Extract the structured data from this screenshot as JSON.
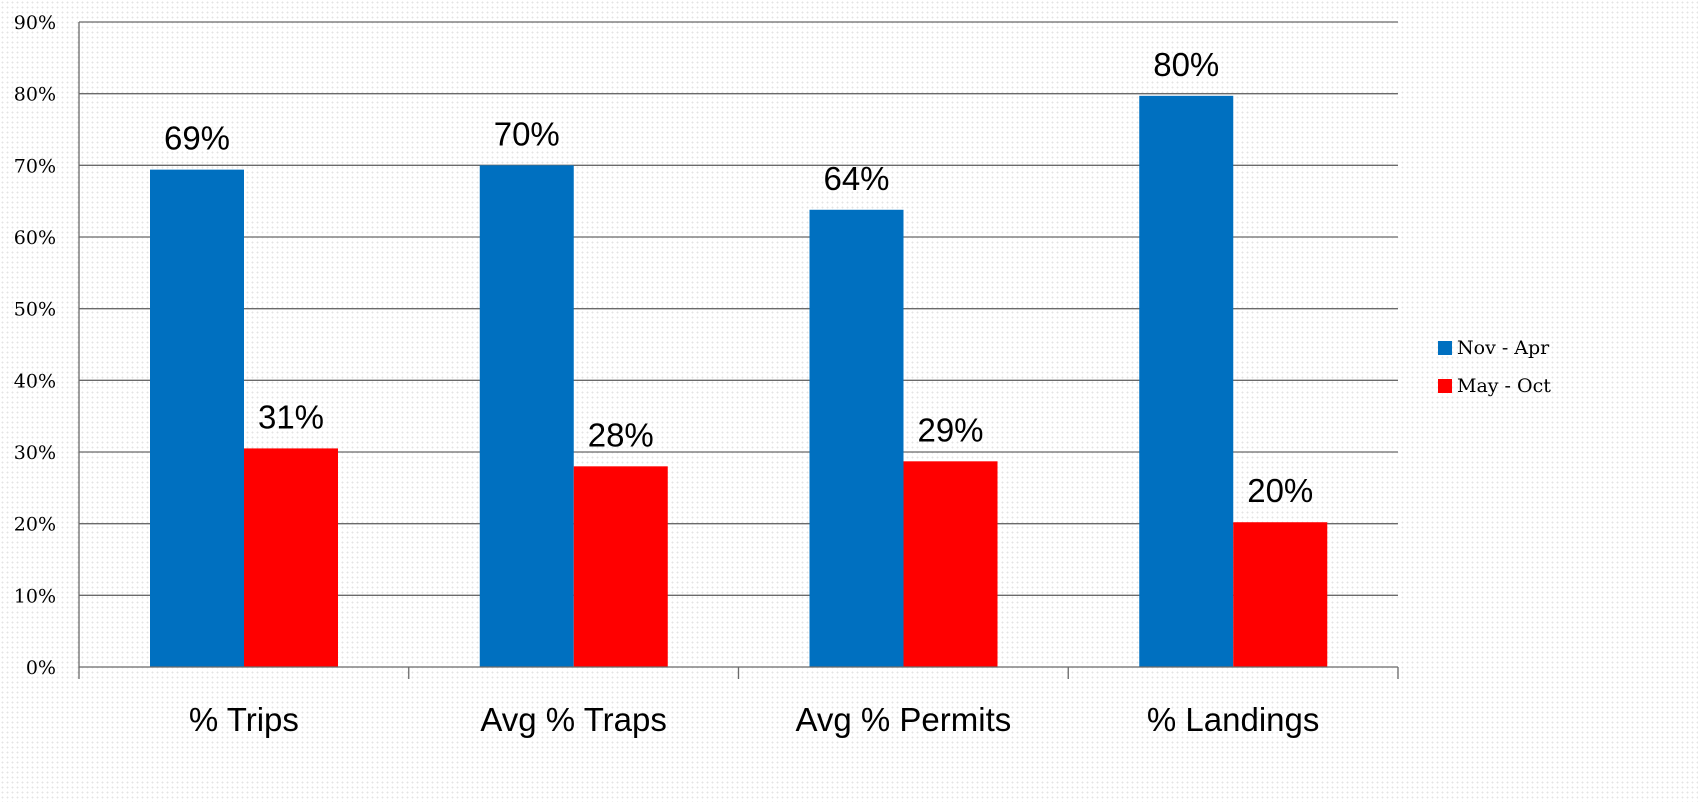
{
  "chart_data": {
    "type": "bar",
    "categories": [
      "% Trips",
      "Avg % Traps",
      "Avg % Permits",
      "% Landings"
    ],
    "series": [
      {
        "name": "Nov - Apr",
        "color": "#0070C0",
        "values": [
          69.4,
          70.0,
          63.8,
          79.7
        ],
        "labels": [
          "69%",
          "70%",
          "64%",
          "80%"
        ]
      },
      {
        "name": "May - Oct",
        "color": "#FF0000",
        "values": [
          30.5,
          28.0,
          28.7,
          20.2
        ],
        "labels": [
          "31%",
          "28%",
          "29%",
          "20%"
        ]
      }
    ],
    "ylim": [
      0,
      90
    ],
    "yticks": [
      0,
      10,
      20,
      30,
      40,
      50,
      60,
      70,
      80,
      90
    ],
    "ytick_labels": [
      "0%",
      "10%",
      "20%",
      "30%",
      "40%",
      "50%",
      "60%",
      "70%",
      "80%",
      "90%"
    ],
    "grid": true,
    "legend_position": "right",
    "title": "",
    "xlabel": "",
    "ylabel": ""
  }
}
